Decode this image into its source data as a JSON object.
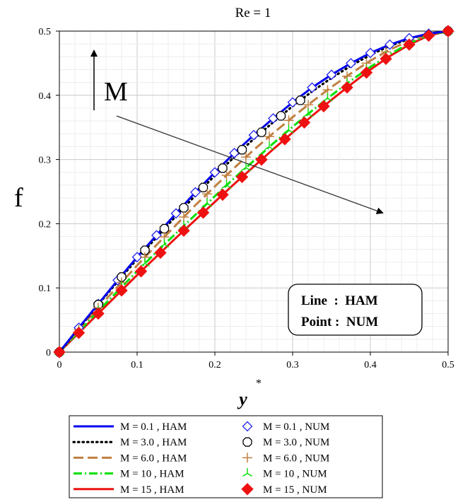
{
  "chart_data": {
    "type": "line",
    "title": "Re = 1",
    "xlabel": "y",
    "xlabel_superscript": "*",
    "ylabel": "f",
    "xlim": [
      0,
      0.5
    ],
    "ylim": [
      0,
      0.5
    ],
    "grid": true,
    "x_ticks": [
      "0",
      "0.1",
      "0.2",
      "0.3",
      "0.4",
      "0.5"
    ],
    "y_ticks": [
      "0",
      "0.1",
      "0.2",
      "0.3",
      "0.4",
      "0.5"
    ],
    "annotation_arrow_label": "M",
    "annotation_box": {
      "line1": "Line  :  HAM",
      "line2": "Point :  NUM"
    },
    "legend_position": "below",
    "ham_series": [
      {
        "name": "M = 0.1  ,  HAM",
        "M": 0.1,
        "color": "#0000ee",
        "dash": "solid"
      },
      {
        "name": "M = 3.0  ,  HAM",
        "M": 3.0,
        "color": "#000000",
        "dash": "dot"
      },
      {
        "name": "M = 6.0  ,  HAM",
        "M": 6.0,
        "color": "#c08040",
        "dash": "dash"
      },
      {
        "name": "M = 10  ,  HAM",
        "M": 10,
        "color": "#00e000",
        "dash": "dashdot"
      },
      {
        "name": "M = 15  ,  HAM",
        "M": 15,
        "color": "#ee1111",
        "dash": "solid"
      }
    ],
    "num_series": [
      {
        "name": "M = 0.1  ,  NUM",
        "M": 0.1,
        "color": "#2222ee",
        "marker": "diamond-open"
      },
      {
        "name": "M = 3.0  ,  NUM",
        "M": 3.0,
        "color": "#000000",
        "marker": "octagon-open"
      },
      {
        "name": "M = 6.0  ,  NUM",
        "M": 6.0,
        "color": "#c08040",
        "marker": "cross"
      },
      {
        "name": "M = 10  ,  NUM",
        "M": 10,
        "color": "#00dd00",
        "marker": "asterisk"
      },
      {
        "name": "M = 15  ,  NUM",
        "M": 15,
        "color": "#ee1111",
        "marker": "diamond-filled"
      }
    ],
    "x": [
      0,
      0.025,
      0.05,
      0.075,
      0.1,
      0.125,
      0.15,
      0.175,
      0.2,
      0.225,
      0.25,
      0.275,
      0.3,
      0.325,
      0.35,
      0.375,
      0.4,
      0.425,
      0.45,
      0.475,
      0.5
    ],
    "series": [
      {
        "name": "M = 0.1",
        "values": [
          0,
          0.038,
          0.075,
          0.112,
          0.148,
          0.182,
          0.216,
          0.249,
          0.28,
          0.31,
          0.338,
          0.364,
          0.389,
          0.412,
          0.432,
          0.45,
          0.466,
          0.479,
          0.489,
          0.496,
          0.5
        ]
      },
      {
        "name": "M = 3.0",
        "values": [
          0,
          0.037,
          0.074,
          0.11,
          0.145,
          0.179,
          0.212,
          0.244,
          0.275,
          0.304,
          0.332,
          0.358,
          0.383,
          0.406,
          0.427,
          0.446,
          0.463,
          0.477,
          0.488,
          0.496,
          0.5
        ]
      },
      {
        "name": "M = 6.0",
        "values": [
          0,
          0.035,
          0.069,
          0.102,
          0.135,
          0.167,
          0.198,
          0.229,
          0.258,
          0.287,
          0.315,
          0.341,
          0.366,
          0.39,
          0.413,
          0.434,
          0.454,
          0.471,
          0.485,
          0.495,
          0.5
        ]
      },
      {
        "name": "M = 10",
        "values": [
          0,
          0.032,
          0.064,
          0.095,
          0.126,
          0.156,
          0.185,
          0.214,
          0.243,
          0.271,
          0.298,
          0.325,
          0.351,
          0.376,
          0.4,
          0.423,
          0.444,
          0.464,
          0.481,
          0.494,
          0.5
        ]
      },
      {
        "name": "M = 15",
        "values": [
          0,
          0.03,
          0.06,
          0.09,
          0.12,
          0.149,
          0.178,
          0.206,
          0.234,
          0.262,
          0.289,
          0.316,
          0.342,
          0.368,
          0.393,
          0.417,
          0.44,
          0.461,
          0.479,
          0.493,
          0.5
        ]
      }
    ],
    "num_points_x": [
      [
        0,
        0.025,
        0.05,
        0.075,
        0.1,
        0.125,
        0.15,
        0.175,
        0.2,
        0.225,
        0.25,
        0.275,
        0.3,
        0.325,
        0.35,
        0.375,
        0.4,
        0.425,
        0.45,
        0.475,
        0.5
      ],
      [
        0,
        0.05,
        0.08,
        0.11,
        0.135,
        0.16,
        0.185,
        0.21,
        0.235,
        0.26,
        0.285,
        0.31,
        0.5
      ],
      [
        0,
        0.025,
        0.05,
        0.08,
        0.11,
        0.135,
        0.16,
        0.19,
        0.215,
        0.24,
        0.27,
        0.295,
        0.32,
        0.345,
        0.37,
        0.395,
        0.42,
        0.5
      ],
      [
        0,
        0.025,
        0.05,
        0.08,
        0.11,
        0.135,
        0.16,
        0.19,
        0.215,
        0.24,
        0.27,
        0.295,
        0.32,
        0.345,
        0.37,
        0.395,
        0.42,
        0.5
      ],
      [
        0,
        0.025,
        0.05,
        0.08,
        0.105,
        0.13,
        0.16,
        0.185,
        0.21,
        0.235,
        0.26,
        0.29,
        0.315,
        0.34,
        0.37,
        0.395,
        0.42,
        0.45,
        0.475,
        0.5
      ]
    ]
  }
}
